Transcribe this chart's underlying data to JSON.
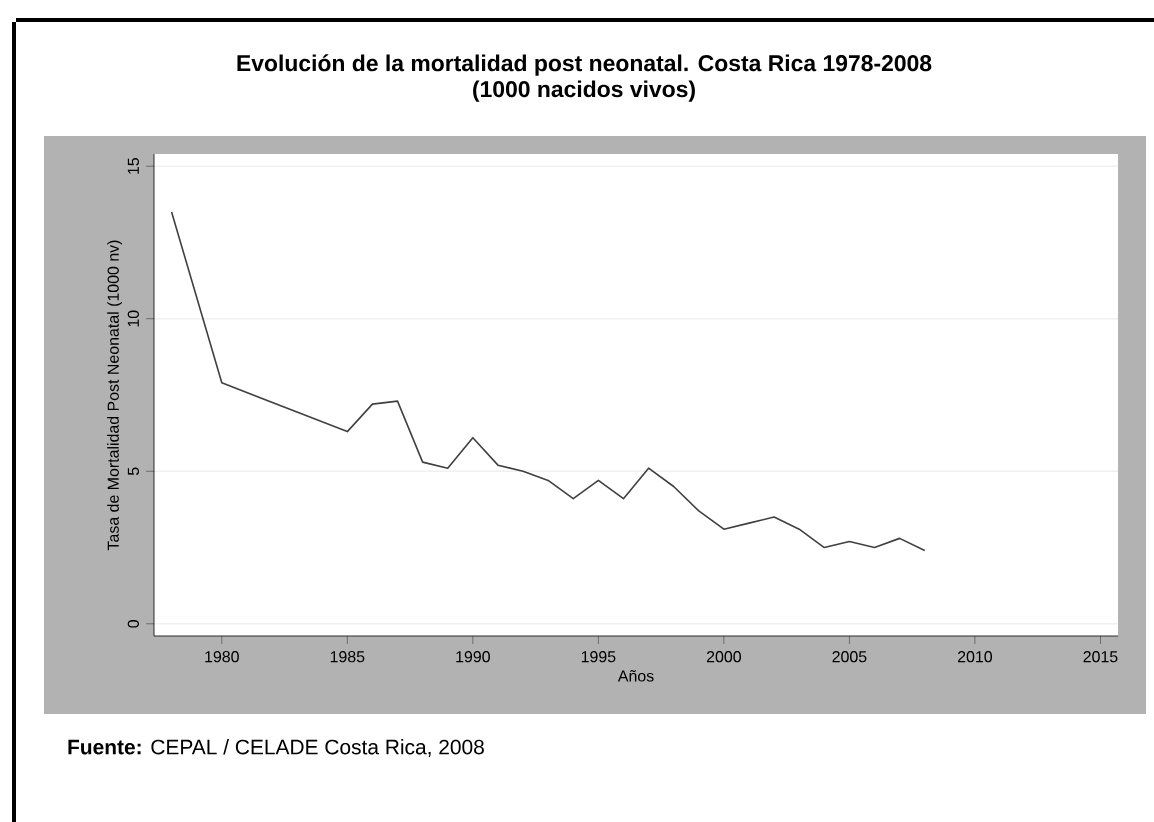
{
  "chart_data": {
    "type": "line",
    "title": "Evolución de la mortalidad post neonatal. Costa Rica 1978-2008",
    "subtitle": "(1000 nacidos vivos)",
    "xlabel": "Años",
    "ylabel": "Tasa de Mortalidad Post Neonatal (1000 nv)",
    "annotations": [
      "**Fuente:** CEPAL / CELADE Costa Rica, 2008"
    ],
    "x": [
      1978,
      1980,
      1985,
      1986,
      1987,
      1988,
      1989,
      1990,
      1991,
      1992,
      1993,
      1994,
      1995,
      1996,
      1997,
      1998,
      1999,
      2000,
      2001,
      2002,
      2003,
      2004,
      2005,
      2006,
      2007,
      2008
    ],
    "series": [
      {
        "color": "#404040",
        "values": [
          13.5,
          7.9,
          6.3,
          7.2,
          7.3,
          5.3,
          5.1,
          6.1,
          5.2,
          5.0,
          4.7,
          4.1,
          4.7,
          4.1,
          5.1,
          4.5,
          3.7,
          3.1,
          3.3,
          3.5,
          3.1,
          2.5,
          2.7,
          2.5,
          2.8,
          2.4
        ]
      }
    ],
    "xlim": [
      1977.3,
      2015.7
    ],
    "ylim": [
      -0.4,
      15.4
    ],
    "xticks": [
      1980,
      1985,
      1990,
      1995,
      2000,
      2005,
      2010,
      2015
    ],
    "yticks": [
      0,
      5,
      10,
      15
    ],
    "grid": "y",
    "marker": "none",
    "line_style": "solid"
  }
}
